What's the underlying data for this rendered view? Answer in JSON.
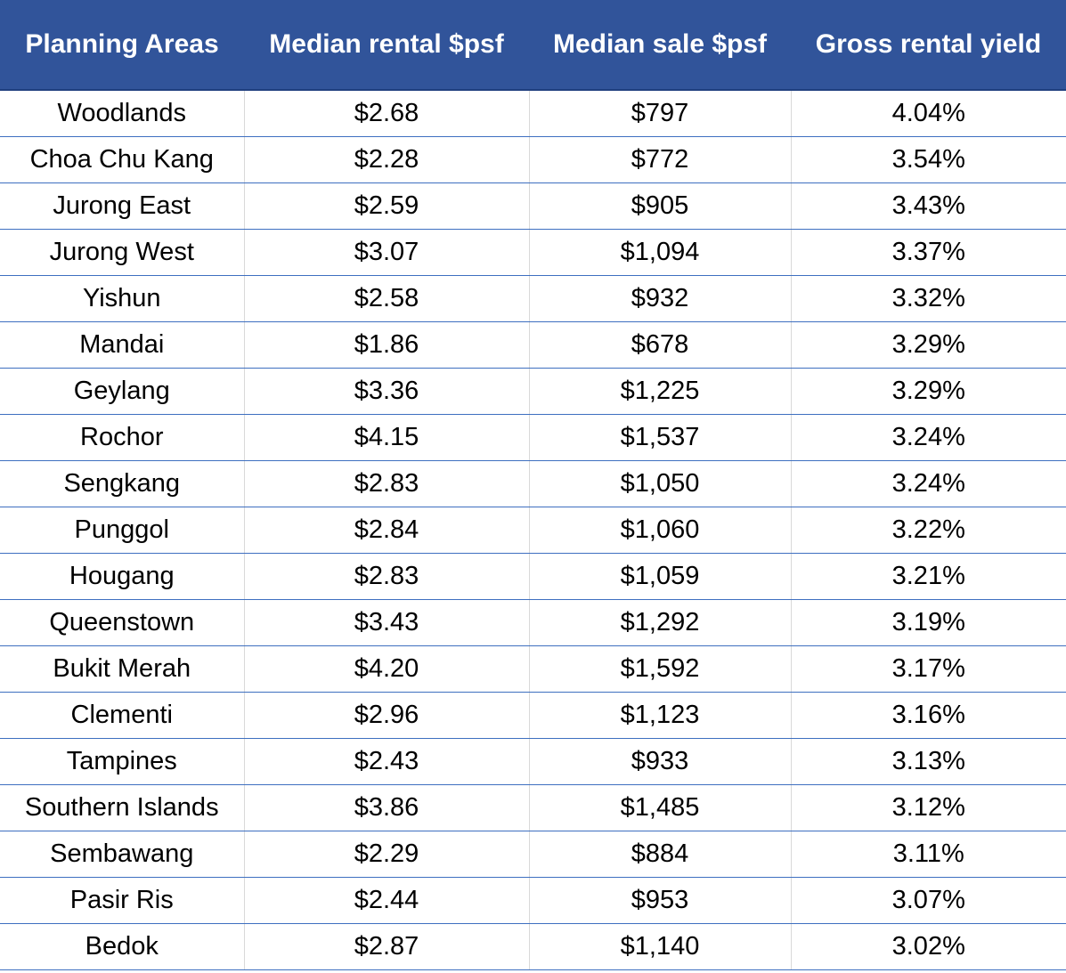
{
  "table": {
    "headers": [
      "Planning Areas",
      "Median rental $psf",
      "Median sale $psf",
      "Gross rental yield"
    ],
    "rows": [
      [
        "Woodlands",
        "$2.68",
        "$797",
        "4.04%"
      ],
      [
        "Choa Chu Kang",
        "$2.28",
        "$772",
        "3.54%"
      ],
      [
        "Jurong East",
        "$2.59",
        "$905",
        "3.43%"
      ],
      [
        "Jurong West",
        "$3.07",
        "$1,094",
        "3.37%"
      ],
      [
        "Yishun",
        "$2.58",
        "$932",
        "3.32%"
      ],
      [
        "Mandai",
        "$1.86",
        "$678",
        "3.29%"
      ],
      [
        "Geylang",
        "$3.36",
        "$1,225",
        "3.29%"
      ],
      [
        "Rochor",
        "$4.15",
        "$1,537",
        "3.24%"
      ],
      [
        "Sengkang",
        "$2.83",
        "$1,050",
        "3.24%"
      ],
      [
        "Punggol",
        "$2.84",
        "$1,060",
        "3.22%"
      ],
      [
        "Hougang",
        "$2.83",
        "$1,059",
        "3.21%"
      ],
      [
        "Queenstown",
        "$3.43",
        "$1,292",
        "3.19%"
      ],
      [
        "Bukit Merah",
        "$4.20",
        "$1,592",
        "3.17%"
      ],
      [
        "Clementi",
        "$2.96",
        "$1,123",
        "3.16%"
      ],
      [
        "Tampines",
        "$2.43",
        "$933",
        "3.13%"
      ],
      [
        "Southern Islands",
        "$3.86",
        "$1,485",
        "3.12%"
      ],
      [
        "Sembawang",
        "$2.29",
        "$884",
        "3.11%"
      ],
      [
        "Pasir Ris",
        "$2.44",
        "$953",
        "3.07%"
      ],
      [
        "Bedok",
        "$2.87",
        "$1,140",
        "3.02%"
      ]
    ]
  },
  "colors": {
    "header_background": "#31549a",
    "header_text": "#ffffff",
    "row_divider": "#3e6fc0",
    "column_divider": "#d9d9d9"
  }
}
